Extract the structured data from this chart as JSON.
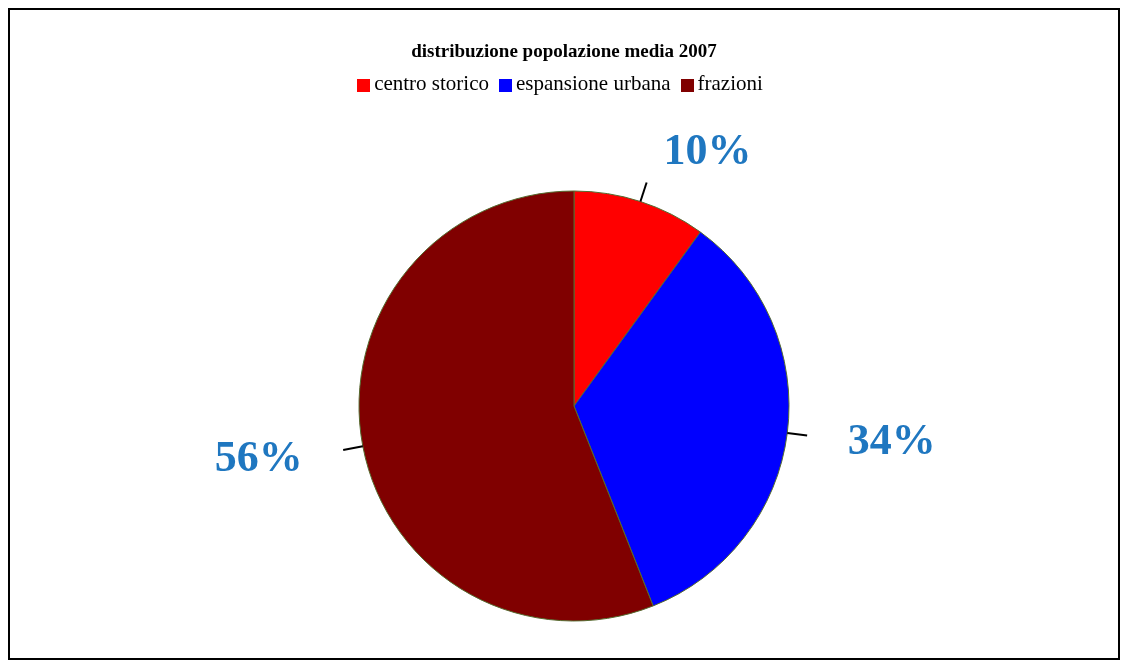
{
  "chart_data": {
    "type": "pie",
    "title": "distribuzione popolazione media 2007",
    "categories": [
      "centro storico",
      "espansione urbana",
      "frazioni"
    ],
    "values": [
      10,
      34,
      56
    ],
    "colors": [
      "#ff0000",
      "#0000ff",
      "#800000"
    ],
    "value_labels": [
      "10%",
      "34%",
      "56%"
    ],
    "legend": "top"
  }
}
